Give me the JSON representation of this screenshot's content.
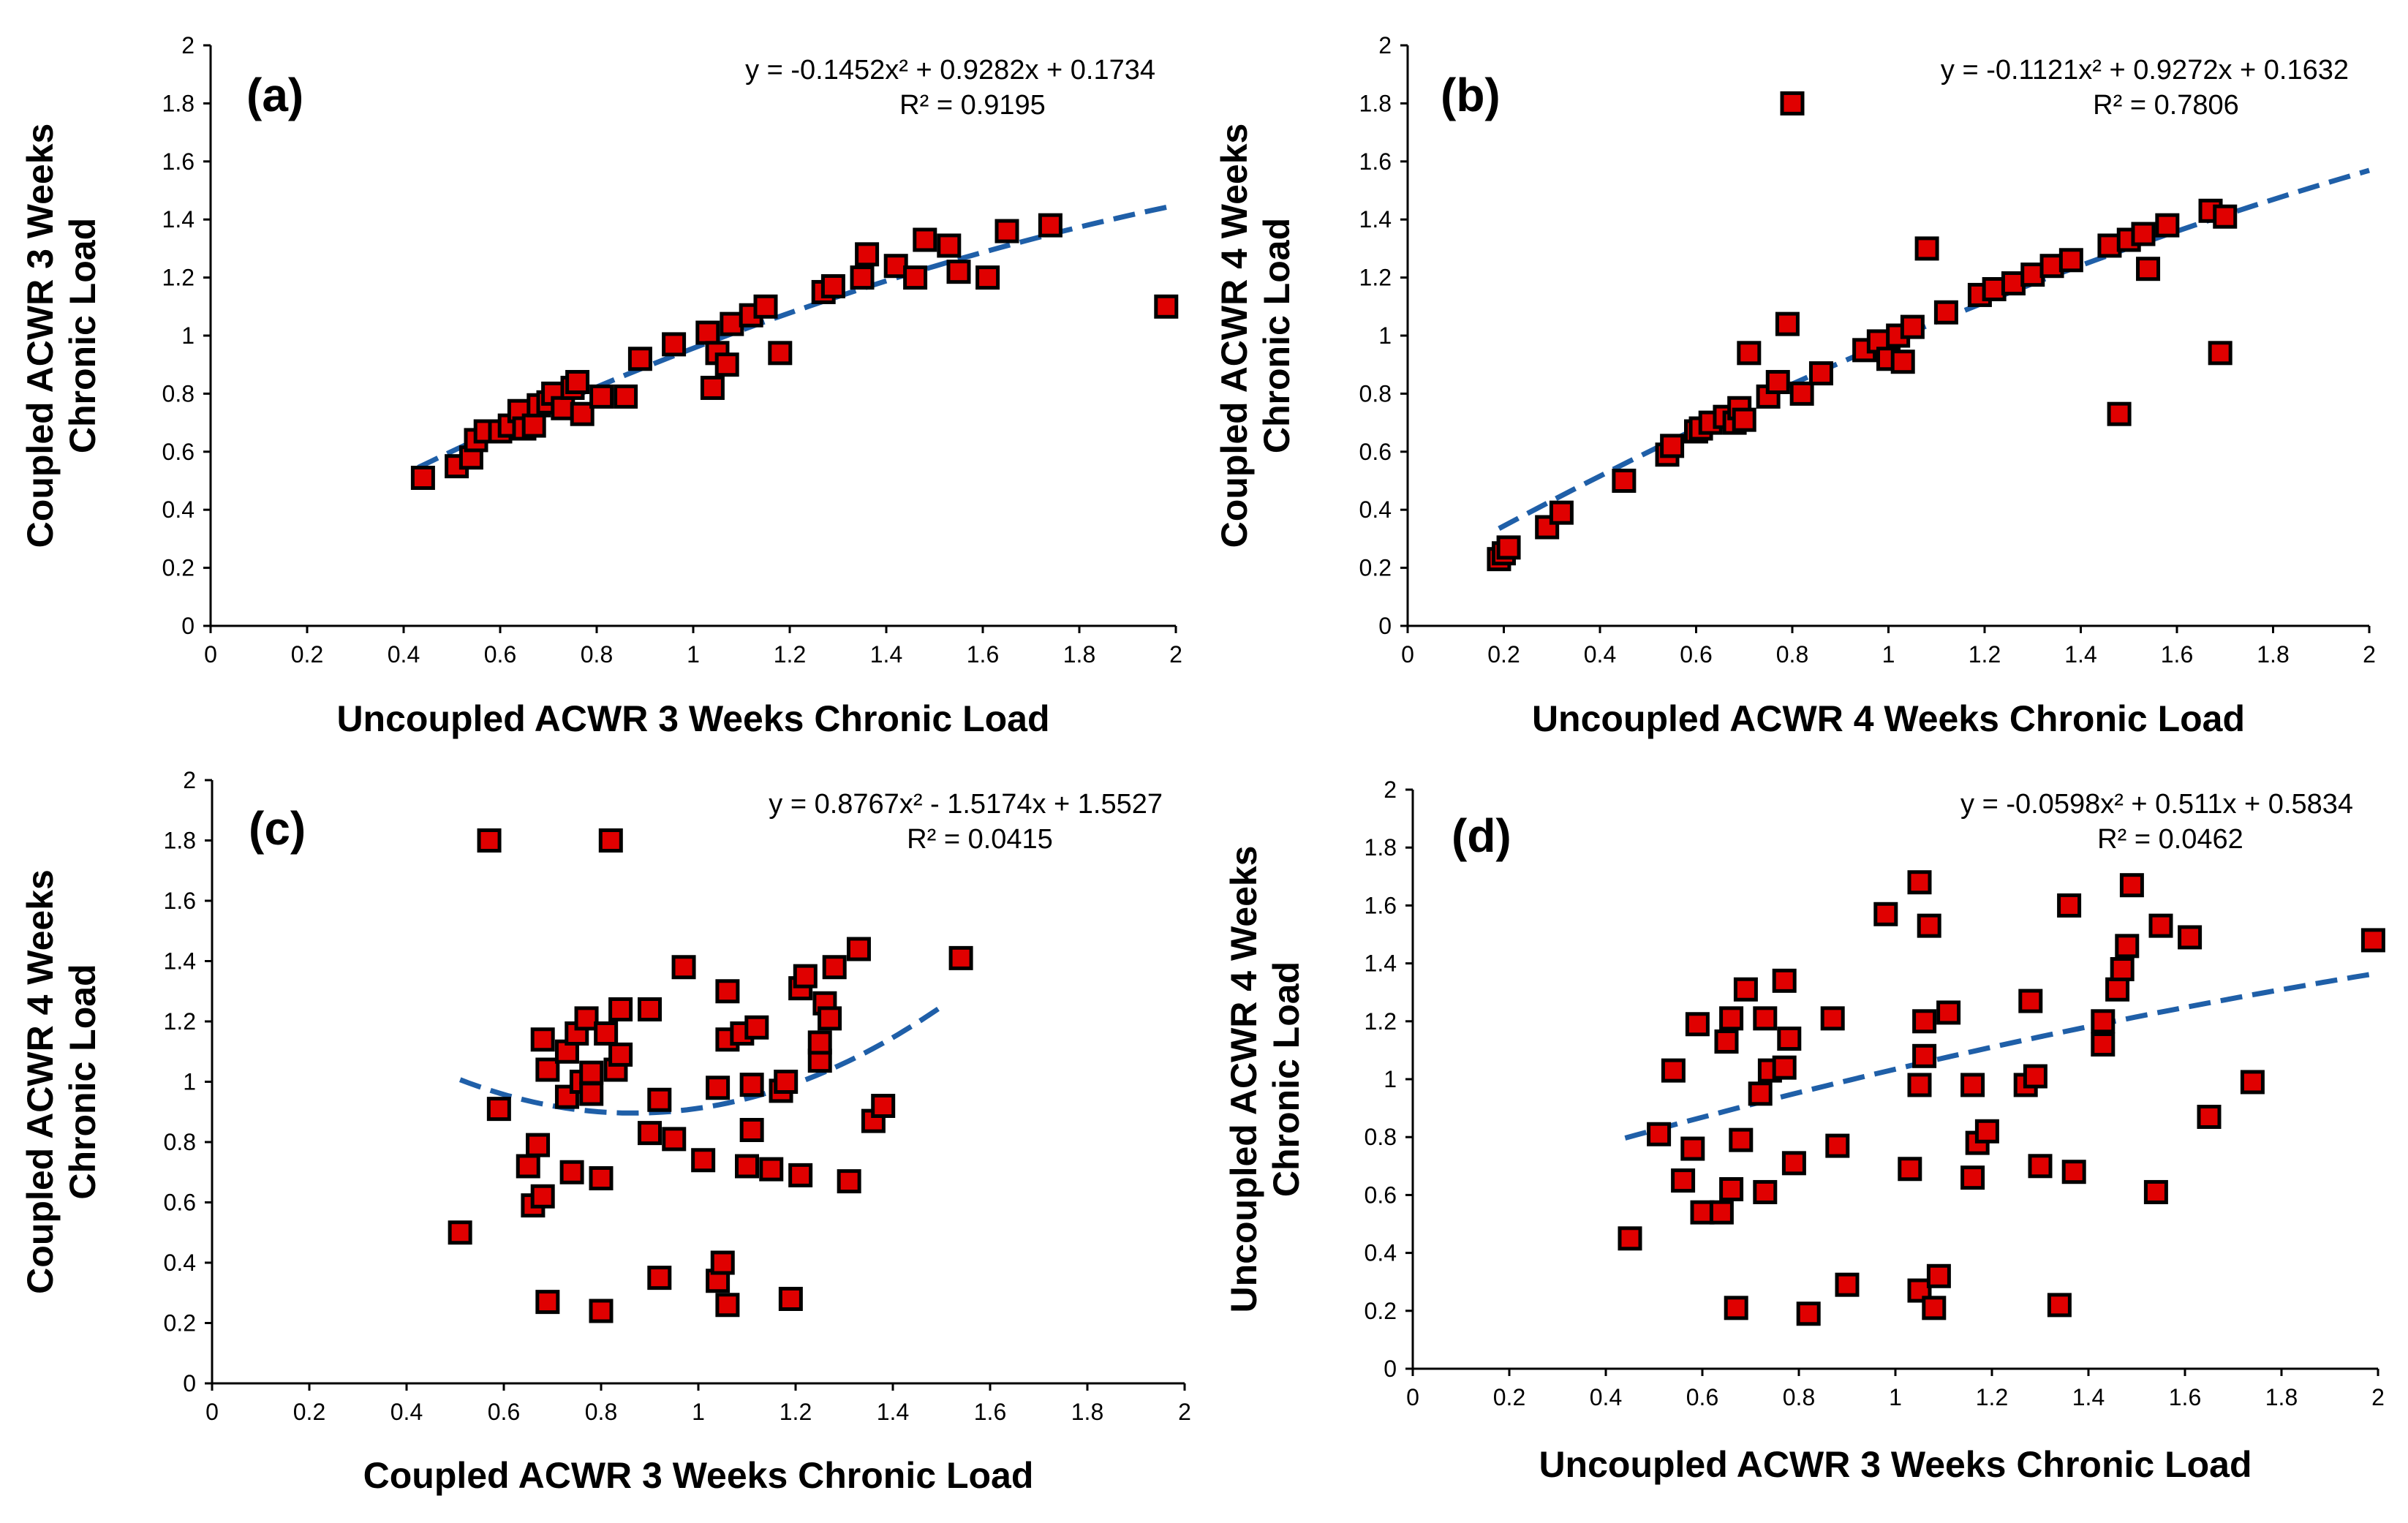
{
  "colors": {
    "marker_fill": "#e00000",
    "marker_edge": "#000000",
    "trendline": "#1f5fa8"
  },
  "chart_data": [
    {
      "type": "scatter",
      "panel_label": "(a)",
      "equation": "y = -0.1452x² + 0.9282x + 0.1734",
      "r_squared": "R² = 0.9195",
      "trend_coefficients": [
        -0.1452,
        0.9282,
        0.1734
      ],
      "trend_range": [
        0.43,
        2.0
      ],
      "xlabel": "Uncoupled ACWR 3 Weeks Chronic Load",
      "ylabel_line1": "Coupled ACWR 3 Weeks",
      "ylabel_line2": "Chronic Load",
      "xlim": [
        0,
        2
      ],
      "ylim": [
        0,
        2
      ],
      "xticks": [
        "0",
        "0.2",
        "0.4",
        "0.6",
        "0.8",
        "1",
        "1.2",
        "1.4",
        "1.6",
        "1.8",
        "2"
      ],
      "yticks": [
        "0",
        "0.2",
        "0.4",
        "0.6",
        "0.8",
        "1",
        "1.2",
        "1.4",
        "1.6",
        "1.8",
        "2"
      ],
      "points": [
        [
          0.44,
          0.51
        ],
        [
          0.51,
          0.55
        ],
        [
          0.54,
          0.58
        ],
        [
          0.55,
          0.64
        ],
        [
          0.57,
          0.67
        ],
        [
          0.6,
          0.67
        ],
        [
          0.62,
          0.69
        ],
        [
          0.64,
          0.74
        ],
        [
          0.65,
          0.68
        ],
        [
          0.67,
          0.69
        ],
        [
          0.68,
          0.76
        ],
        [
          0.7,
          0.77
        ],
        [
          0.71,
          0.8
        ],
        [
          0.73,
          0.75
        ],
        [
          0.75,
          0.82
        ],
        [
          0.76,
          0.84
        ],
        [
          0.77,
          0.73
        ],
        [
          0.81,
          0.79
        ],
        [
          0.86,
          0.79
        ],
        [
          0.89,
          0.92
        ],
        [
          0.96,
          0.97
        ],
        [
          1.03,
          1.01
        ],
        [
          1.04,
          0.82
        ],
        [
          1.05,
          0.94
        ],
        [
          1.07,
          0.9
        ],
        [
          1.08,
          1.04
        ],
        [
          1.12,
          1.07
        ],
        [
          1.15,
          1.1
        ],
        [
          1.18,
          0.94
        ],
        [
          1.27,
          1.15
        ],
        [
          1.29,
          1.17
        ],
        [
          1.35,
          1.2
        ],
        [
          1.36,
          1.28
        ],
        [
          1.42,
          1.24
        ],
        [
          1.46,
          1.2
        ],
        [
          1.48,
          1.33
        ],
        [
          1.53,
          1.31
        ],
        [
          1.55,
          1.22
        ],
        [
          1.61,
          1.2
        ],
        [
          1.65,
          1.36
        ],
        [
          1.74,
          1.38
        ],
        [
          1.98,
          1.1
        ]
      ]
    },
    {
      "type": "scatter",
      "panel_label": "(b)",
      "equation": "y = -0.1121x² + 0.9272x + 0.1632",
      "r_squared": "R² = 0.7806",
      "trend_coefficients": [
        -0.1121,
        0.9272,
        0.1632
      ],
      "trend_range": [
        0.19,
        2.0
      ],
      "xlabel": "Uncoupled ACWR 4 Weeks Chronic Load",
      "ylabel_line1": "Coupled ACWR 4 Weeks",
      "ylabel_line2": "Chronic Load",
      "xlim": [
        0,
        2
      ],
      "ylim": [
        0,
        2
      ],
      "xticks": [
        "0",
        "0.2",
        "0.4",
        "0.6",
        "0.8",
        "1",
        "1.2",
        "1.4",
        "1.6",
        "1.8",
        "2"
      ],
      "yticks": [
        "0",
        "0.2",
        "0.4",
        "0.6",
        "0.8",
        "1",
        "1.2",
        "1.4",
        "1.6",
        "1.8",
        "2"
      ],
      "points": [
        [
          0.19,
          0.23
        ],
        [
          0.2,
          0.25
        ],
        [
          0.21,
          0.27
        ],
        [
          0.29,
          0.34
        ],
        [
          0.32,
          0.39
        ],
        [
          0.45,
          0.5
        ],
        [
          0.54,
          0.59
        ],
        [
          0.55,
          0.62
        ],
        [
          0.6,
          0.67
        ],
        [
          0.61,
          0.68
        ],
        [
          0.63,
          0.7
        ],
        [
          0.66,
          0.72
        ],
        [
          0.68,
          0.7
        ],
        [
          0.69,
          0.75
        ],
        [
          0.7,
          0.71
        ],
        [
          0.71,
          0.94
        ],
        [
          0.75,
          0.79
        ],
        [
          0.77,
          0.84
        ],
        [
          0.79,
          1.04
        ],
        [
          0.8,
          1.8
        ],
        [
          0.82,
          0.8
        ],
        [
          0.86,
          0.87
        ],
        [
          0.95,
          0.95
        ],
        [
          0.98,
          0.98
        ],
        [
          1.0,
          0.92
        ],
        [
          1.02,
          1.0
        ],
        [
          1.03,
          0.91
        ],
        [
          1.05,
          1.03
        ],
        [
          1.08,
          1.3
        ],
        [
          1.12,
          1.08
        ],
        [
          1.19,
          1.14
        ],
        [
          1.22,
          1.16
        ],
        [
          1.26,
          1.18
        ],
        [
          1.3,
          1.21
        ],
        [
          1.34,
          1.24
        ],
        [
          1.38,
          1.26
        ],
        [
          1.46,
          1.31
        ],
        [
          1.48,
          0.73
        ],
        [
          1.5,
          1.33
        ],
        [
          1.53,
          1.35
        ],
        [
          1.54,
          1.23
        ],
        [
          1.58,
          1.38
        ],
        [
          1.67,
          1.43
        ],
        [
          1.69,
          0.94
        ],
        [
          1.7,
          1.41
        ]
      ]
    },
    {
      "type": "scatter",
      "panel_label": "(c)",
      "equation": "y = 0.8767x² - 1.5174x + 1.5527",
      "r_squared": "R² = 0.0415",
      "trend_coefficients": [
        0.8767,
        -1.5174,
        1.5527
      ],
      "trend_range": [
        0.51,
        1.51
      ],
      "xlabel": "Coupled ACWR 3 Weeks Chronic Load",
      "ylabel_line1": "Coupled  ACWR 4 Weeks",
      "ylabel_line2": "Chronic Load",
      "xlim": [
        0,
        2
      ],
      "ylim": [
        0,
        2
      ],
      "xticks": [
        "0",
        "0.2",
        "0.4",
        "0.6",
        "0.8",
        "1",
        "1.2",
        "1.4",
        "1.6",
        "1.8",
        "2"
      ],
      "yticks": [
        "0",
        "0.2",
        "0.4",
        "0.6",
        "0.8",
        "1",
        "1.2",
        "1.4",
        "1.6",
        "1.8",
        "2"
      ],
      "points": [
        [
          0.51,
          0.5
        ],
        [
          0.57,
          1.8
        ],
        [
          0.59,
          0.91
        ],
        [
          0.65,
          0.72
        ],
        [
          0.66,
          0.59
        ],
        [
          0.67,
          0.79
        ],
        [
          0.68,
          0.62
        ],
        [
          0.68,
          1.14
        ],
        [
          0.69,
          0.27
        ],
        [
          0.69,
          1.04
        ],
        [
          0.73,
          1.1
        ],
        [
          0.73,
          0.95
        ],
        [
          0.74,
          0.7
        ],
        [
          0.75,
          1.16
        ],
        [
          0.76,
          1.0
        ],
        [
          0.77,
          1.21
        ],
        [
          0.78,
          1.03
        ],
        [
          0.78,
          0.96
        ],
        [
          0.8,
          0.68
        ],
        [
          0.8,
          0.24
        ],
        [
          0.81,
          1.16
        ],
        [
          0.82,
          1.8
        ],
        [
          0.83,
          1.04
        ],
        [
          0.84,
          1.09
        ],
        [
          0.84,
          1.24
        ],
        [
          0.9,
          0.83
        ],
        [
          0.9,
          1.24
        ],
        [
          0.92,
          0.35
        ],
        [
          0.92,
          0.94
        ],
        [
          0.95,
          0.81
        ],
        [
          0.97,
          1.38
        ],
        [
          1.01,
          0.74
        ],
        [
          1.04,
          0.34
        ],
        [
          1.04,
          0.98
        ],
        [
          1.05,
          0.4
        ],
        [
          1.06,
          0.26
        ],
        [
          1.06,
          1.14
        ],
        [
          1.06,
          1.3
        ],
        [
          1.09,
          1.16
        ],
        [
          1.1,
          0.72
        ],
        [
          1.11,
          0.84
        ],
        [
          1.11,
          0.99
        ],
        [
          1.12,
          1.18
        ],
        [
          1.15,
          0.71
        ],
        [
          1.17,
          0.97
        ],
        [
          1.18,
          1.0
        ],
        [
          1.19,
          0.28
        ],
        [
          1.21,
          0.69
        ],
        [
          1.21,
          1.31
        ],
        [
          1.22,
          1.35
        ],
        [
          1.25,
          1.07
        ],
        [
          1.25,
          1.13
        ],
        [
          1.26,
          1.26
        ],
        [
          1.27,
          1.21
        ],
        [
          1.28,
          1.38
        ],
        [
          1.31,
          0.67
        ],
        [
          1.33,
          1.44
        ],
        [
          1.36,
          0.87
        ],
        [
          1.38,
          0.92
        ],
        [
          1.54,
          1.41
        ]
      ]
    },
    {
      "type": "scatter",
      "panel_label": "(d)",
      "equation": "y = -0.0598x² + 0.511x + 0.5834",
      "r_squared": "R² = 0.0462",
      "trend_coefficients": [
        -0.0598,
        0.511,
        0.5834
      ],
      "trend_range": [
        0.44,
        2.0
      ],
      "xlabel": "Uncoupled ACWR 3 Weeks Chronic Load",
      "ylabel_line1": "Uncoupled  ACWR 4 Weeks",
      "ylabel_line2": "Chronic Load",
      "xlim": [
        0,
        2
      ],
      "ylim": [
        0,
        2
      ],
      "xticks": [
        "0",
        "0.2",
        "0.4",
        "0.6",
        "0.8",
        "1",
        "1.2",
        "1.4",
        "1.6",
        "1.8",
        "2"
      ],
      "yticks": [
        "0",
        "0.2",
        "0.4",
        "0.6",
        "0.8",
        "1",
        "1.2",
        "1.4",
        "1.6",
        "1.8",
        "2"
      ],
      "points": [
        [
          0.45,
          0.45
        ],
        [
          0.51,
          0.81
        ],
        [
          0.54,
          1.03
        ],
        [
          0.56,
          0.65
        ],
        [
          0.58,
          0.76
        ],
        [
          0.59,
          1.19
        ],
        [
          0.6,
          0.54
        ],
        [
          0.64,
          0.54
        ],
        [
          0.65,
          1.13
        ],
        [
          0.66,
          0.62
        ],
        [
          0.66,
          1.21
        ],
        [
          0.67,
          0.21
        ],
        [
          0.68,
          0.79
        ],
        [
          0.69,
          1.31
        ],
        [
          0.72,
          0.95
        ],
        [
          0.73,
          1.21
        ],
        [
          0.73,
          0.61
        ],
        [
          0.74,
          1.03
        ],
        [
          0.77,
          1.04
        ],
        [
          0.77,
          1.34
        ],
        [
          0.78,
          1.14
        ],
        [
          0.79,
          0.71
        ],
        [
          0.82,
          0.19
        ],
        [
          0.87,
          1.21
        ],
        [
          0.88,
          0.77
        ],
        [
          0.9,
          0.29
        ],
        [
          0.98,
          1.57
        ],
        [
          1.03,
          0.69
        ],
        [
          1.05,
          0.27
        ],
        [
          1.05,
          0.98
        ],
        [
          1.05,
          1.68
        ],
        [
          1.06,
          1.08
        ],
        [
          1.06,
          1.2
        ],
        [
          1.07,
          1.53
        ],
        [
          1.08,
          0.21
        ],
        [
          1.09,
          0.32
        ],
        [
          1.11,
          1.23
        ],
        [
          1.16,
          0.66
        ],
        [
          1.16,
          0.98
        ],
        [
          1.17,
          0.78
        ],
        [
          1.19,
          0.82
        ],
        [
          1.27,
          0.98
        ],
        [
          1.28,
          1.27
        ],
        [
          1.29,
          1.01
        ],
        [
          1.3,
          0.7
        ],
        [
          1.34,
          0.22
        ],
        [
          1.36,
          1.6
        ],
        [
          1.37,
          0.68
        ],
        [
          1.43,
          1.12
        ],
        [
          1.43,
          1.2
        ],
        [
          1.46,
          1.31
        ],
        [
          1.47,
          1.38
        ],
        [
          1.48,
          1.46
        ],
        [
          1.49,
          1.67
        ],
        [
          1.54,
          0.61
        ],
        [
          1.55,
          1.53
        ],
        [
          1.61,
          1.49
        ],
        [
          1.65,
          0.87
        ],
        [
          1.74,
          0.99
        ],
        [
          1.99,
          1.48
        ]
      ]
    }
  ]
}
